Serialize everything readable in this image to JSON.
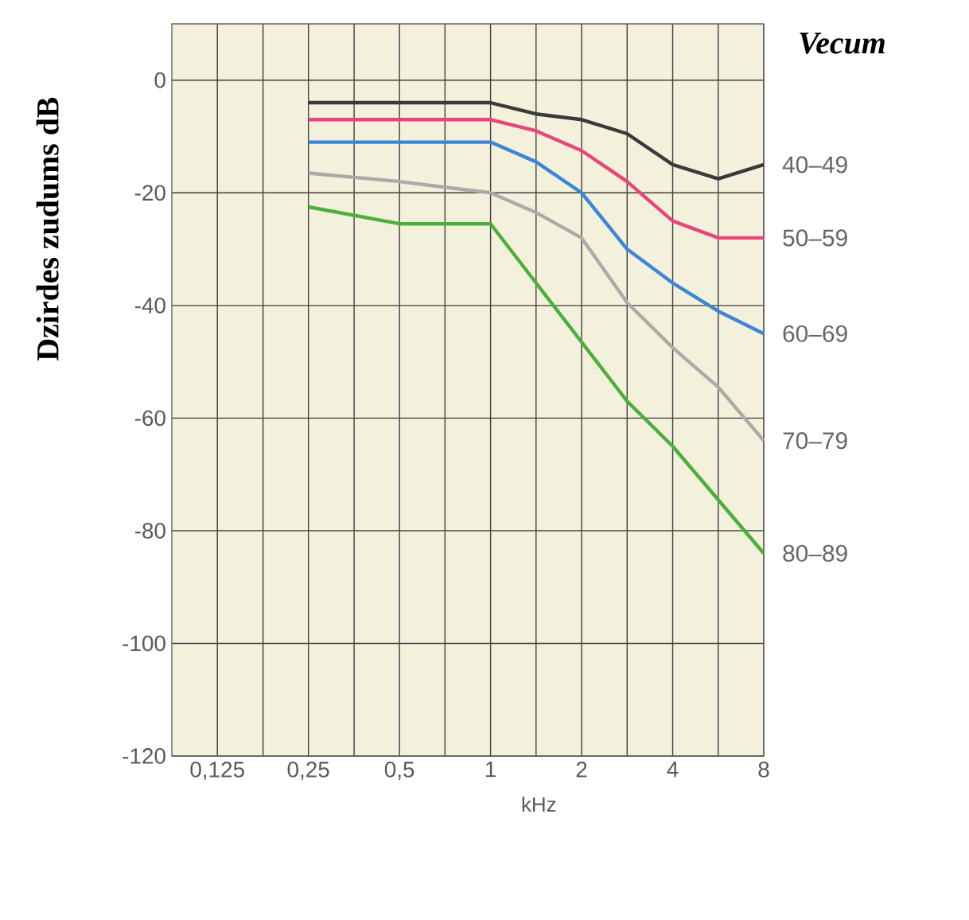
{
  "chart_data": {
    "type": "line",
    "ylabel": "Dzirdes zudums dB",
    "xlabel": "kHz",
    "legend_title": "Vecum",
    "x": [
      0.25,
      0.5,
      0.707,
      1,
      1.414,
      2,
      2.828,
      4,
      5.657,
      8
    ],
    "series": [
      {
        "name": "40–49",
        "color": "#3a3a3a",
        "values": [
          -4,
          -4,
          -4,
          -4,
          -6,
          -7,
          -9.5,
          -15,
          -17.5,
          -15
        ]
      },
      {
        "name": "50–59",
        "color": "#e8457a",
        "values": [
          -7,
          -7,
          -7,
          -7,
          -9,
          -12.5,
          -18,
          -25,
          -28,
          -28
        ]
      },
      {
        "name": "60–69",
        "color": "#3b86d6",
        "values": [
          -11,
          -11,
          -11,
          -11,
          -14.5,
          -20,
          -30,
          -36,
          -41,
          -45
        ]
      },
      {
        "name": "70–79",
        "color": "#b0a8a8",
        "values": [
          -16.5,
          -18,
          -19,
          -20,
          -23.5,
          -28,
          -39.5,
          -47.5,
          -54.5,
          -64
        ]
      },
      {
        "name": "80–89",
        "color": "#4caf3a",
        "x": [
          0.25,
          0.5,
          1,
          2.828,
          4,
          8
        ],
        "values": [
          -22.5,
          -25.5,
          -25.5,
          -57,
          -65,
          -84
        ]
      }
    ],
    "log": "x",
    "xlim": [
      0.0884,
      8
    ],
    "ylim": [
      -120,
      10
    ],
    "xticks": [
      {
        "value": 0.125,
        "label": "0,125"
      },
      {
        "value": 0.177,
        "label": null
      },
      {
        "value": 0.25,
        "label": "0,25"
      },
      {
        "value": 0.354,
        "label": null
      },
      {
        "value": 0.5,
        "label": "0,5"
      },
      {
        "value": 0.707,
        "label": null
      },
      1,
      {
        "value": 1.414,
        "label": null
      },
      2,
      {
        "value": 2.828,
        "label": null
      },
      4,
      {
        "value": 5.657,
        "label": null
      },
      8
    ],
    "yticks": [
      0,
      -20,
      -40,
      -60,
      -80,
      -100,
      -120
    ],
    "grid": true,
    "marker": "none",
    "line_style": "solid"
  }
}
